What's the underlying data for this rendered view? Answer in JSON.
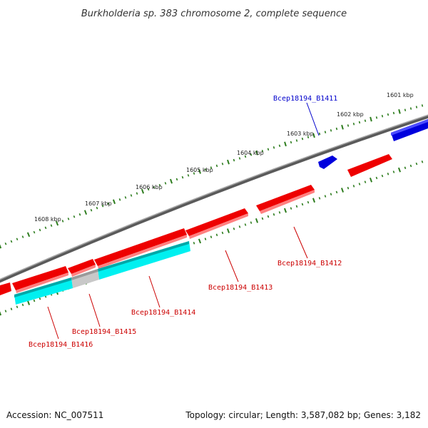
{
  "title": "Burkholderia sp. 383 chromosome 2, complete sequence",
  "footer": {
    "accession": "Accession: NC_007511",
    "summary": "Topology: circular; Length: 3,587,082 bp; Genes: 3,182"
  },
  "colors": {
    "backbone": "#7a7a7a",
    "tick": "#2e7d1f",
    "forward_gene": "#ee0000",
    "reverse_gene": "#ee0000",
    "highlight_gene": "#0000ee",
    "cds_region": "#00ffff",
    "pseudo": "#c0c0c0",
    "label_red": "#cc0000",
    "label_blue": "#0000cc"
  },
  "scale_labels": [
    {
      "text": "1601 kbp"
    },
    {
      "text": "1602 kbp"
    },
    {
      "text": "1603 kbp"
    },
    {
      "text": "1604 kbp"
    },
    {
      "text": "1605 kbp"
    },
    {
      "text": "1606 kbp"
    },
    {
      "text": "1607 kbp"
    },
    {
      "text": "1608 kbp"
    }
  ],
  "genes": [
    {
      "label": "Bcep18194_B1411",
      "color": "blue"
    },
    {
      "label": "Bcep18194_B1412",
      "color": "red"
    },
    {
      "label": "Bcep18194_B1413",
      "color": "red"
    },
    {
      "label": "Bcep18194_B1414",
      "color": "red"
    },
    {
      "label": "Bcep18194_B1415",
      "color": "red"
    },
    {
      "label": "Bcep18194_B1416",
      "color": "red"
    }
  ]
}
